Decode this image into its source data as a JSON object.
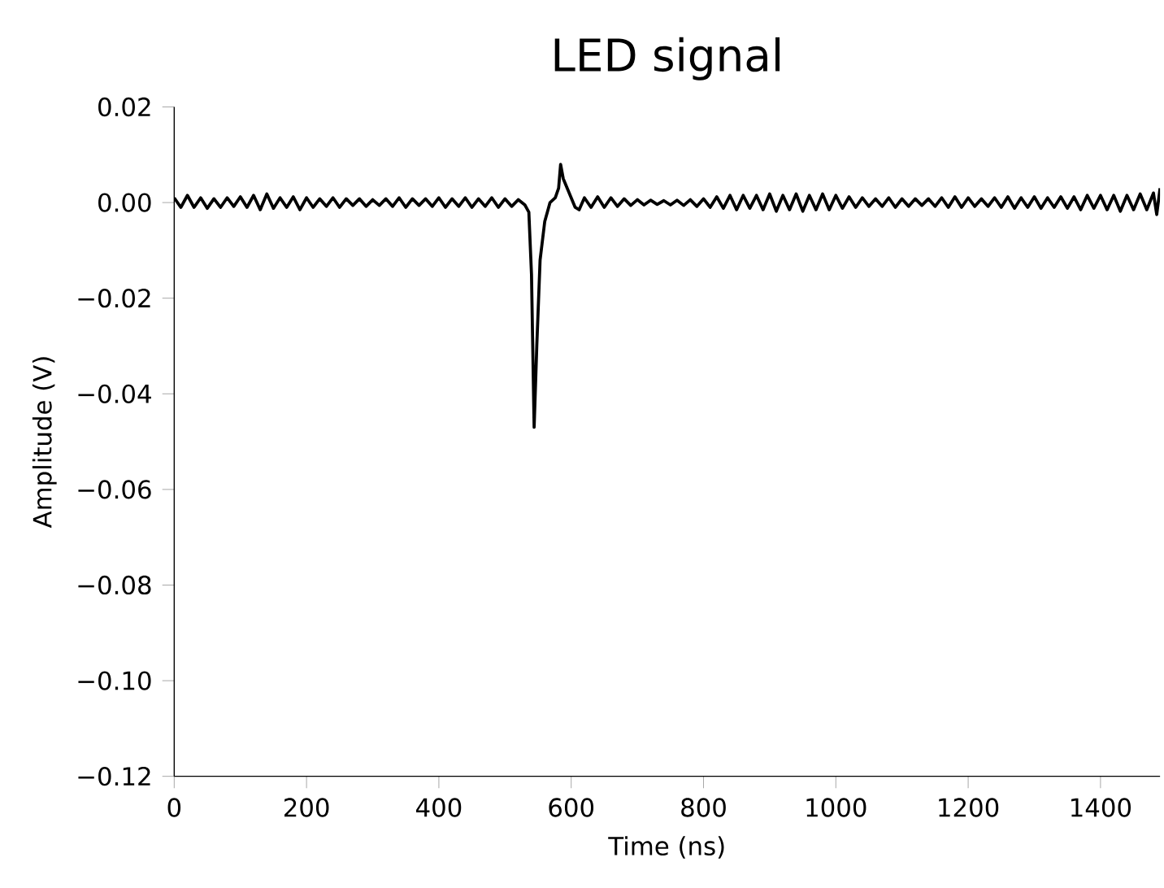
{
  "chart_data": {
    "type": "line",
    "title": "LED signal",
    "xlabel": "Time (ns)",
    "ylabel": "Amplitude (V)",
    "xlim": [
      0,
      1490
    ],
    "ylim": [
      -0.12,
      0.02
    ],
    "xticks": [
      0,
      200,
      400,
      600,
      800,
      1000,
      1200,
      1400
    ],
    "yticks": [
      {
        "value": -0.12,
        "label": "−0.12"
      },
      {
        "value": -0.1,
        "label": "−0.10"
      },
      {
        "value": -0.08,
        "label": "−0.08"
      },
      {
        "value": -0.06,
        "label": "−0.06"
      },
      {
        "value": -0.04,
        "label": "−0.04"
      },
      {
        "value": -0.02,
        "label": "−0.02"
      },
      {
        "value": 0,
        "label": "0.00"
      },
      {
        "value": 0.02,
        "label": "0.02"
      }
    ],
    "grid": false,
    "marker": "none",
    "line_style": "solid",
    "series": [
      {
        "color": "#000000",
        "x": [
          0,
          10,
          20,
          30,
          40,
          50,
          60,
          70,
          80,
          90,
          100,
          110,
          120,
          130,
          140,
          150,
          160,
          170,
          180,
          190,
          200,
          210,
          220,
          230,
          240,
          250,
          260,
          270,
          280,
          290,
          300,
          310,
          320,
          330,
          340,
          350,
          360,
          370,
          380,
          390,
          400,
          410,
          420,
          430,
          440,
          450,
          460,
          470,
          480,
          490,
          500,
          510,
          520,
          530,
          536,
          540,
          544,
          548,
          553,
          560,
          568,
          576,
          581,
          584,
          588,
          594,
          600,
          606,
          612,
          620,
          630,
          640,
          650,
          660,
          670,
          680,
          690,
          700,
          710,
          720,
          730,
          740,
          750,
          760,
          770,
          780,
          790,
          800,
          810,
          820,
          830,
          840,
          850,
          860,
          870,
          880,
          890,
          900,
          910,
          920,
          930,
          940,
          950,
          960,
          970,
          980,
          990,
          1000,
          1010,
          1020,
          1030,
          1040,
          1050,
          1060,
          1070,
          1080,
          1090,
          1100,
          1110,
          1120,
          1130,
          1140,
          1150,
          1160,
          1170,
          1180,
          1190,
          1200,
          1210,
          1220,
          1230,
          1240,
          1250,
          1260,
          1270,
          1280,
          1290,
          1300,
          1310,
          1320,
          1330,
          1340,
          1350,
          1360,
          1370,
          1380,
          1390,
          1400,
          1410,
          1420,
          1430,
          1440,
          1450,
          1460,
          1470,
          1480,
          1485,
          1490
        ],
        "values": [
          0.001,
          -0.001,
          0.0015,
          -0.001,
          0.001,
          -0.0012,
          0.0008,
          -0.001,
          0.001,
          -0.0008,
          0.0012,
          -0.001,
          0.0015,
          -0.0015,
          0.0018,
          -0.0012,
          0.001,
          -0.001,
          0.0012,
          -0.0015,
          0.001,
          -0.001,
          0.0008,
          -0.0008,
          0.001,
          -0.001,
          0.0008,
          -0.0006,
          0.0008,
          -0.0008,
          0.0006,
          -0.0006,
          0.0008,
          -0.0008,
          0.001,
          -0.001,
          0.0008,
          -0.0006,
          0.0008,
          -0.0008,
          0.001,
          -0.001,
          0.0008,
          -0.0008,
          0.001,
          -0.001,
          0.0008,
          -0.0008,
          0.001,
          -0.001,
          0.0008,
          -0.0008,
          0.0006,
          -0.0005,
          -0.002,
          -0.015,
          -0.047,
          -0.03,
          -0.012,
          -0.004,
          0.0,
          0.001,
          0.003,
          0.008,
          0.005,
          0.003,
          0.001,
          -0.001,
          -0.0015,
          0.001,
          -0.001,
          0.0012,
          -0.001,
          0.001,
          -0.0008,
          0.0008,
          -0.0006,
          0.0006,
          -0.0005,
          0.0005,
          -0.0004,
          0.0004,
          -0.0005,
          0.0005,
          -0.0006,
          0.0006,
          -0.0008,
          0.0008,
          -0.001,
          0.0012,
          -0.0012,
          0.0015,
          -0.0015,
          0.0015,
          -0.0012,
          0.0015,
          -0.0015,
          0.0018,
          -0.0018,
          0.0015,
          -0.0015,
          0.0018,
          -0.0018,
          0.0015,
          -0.0015,
          0.0018,
          -0.0015,
          0.0015,
          -0.0012,
          0.0012,
          -0.001,
          0.001,
          -0.0008,
          0.0008,
          -0.0008,
          0.001,
          -0.001,
          0.0008,
          -0.0008,
          0.0008,
          -0.0006,
          0.0008,
          -0.0008,
          0.001,
          -0.001,
          0.0012,
          -0.001,
          0.001,
          -0.0008,
          0.0008,
          -0.0008,
          0.001,
          -0.001,
          0.0012,
          -0.0012,
          0.001,
          -0.001,
          0.0012,
          -0.0012,
          0.001,
          -0.001,
          0.0012,
          -0.0012,
          0.0012,
          -0.0015,
          0.0015,
          -0.0012,
          0.0015,
          -0.0015,
          0.0015,
          -0.0018,
          0.0015,
          -0.0015,
          0.0018,
          -0.0015,
          0.002,
          -0.0025,
          0.003
        ]
      }
    ]
  }
}
